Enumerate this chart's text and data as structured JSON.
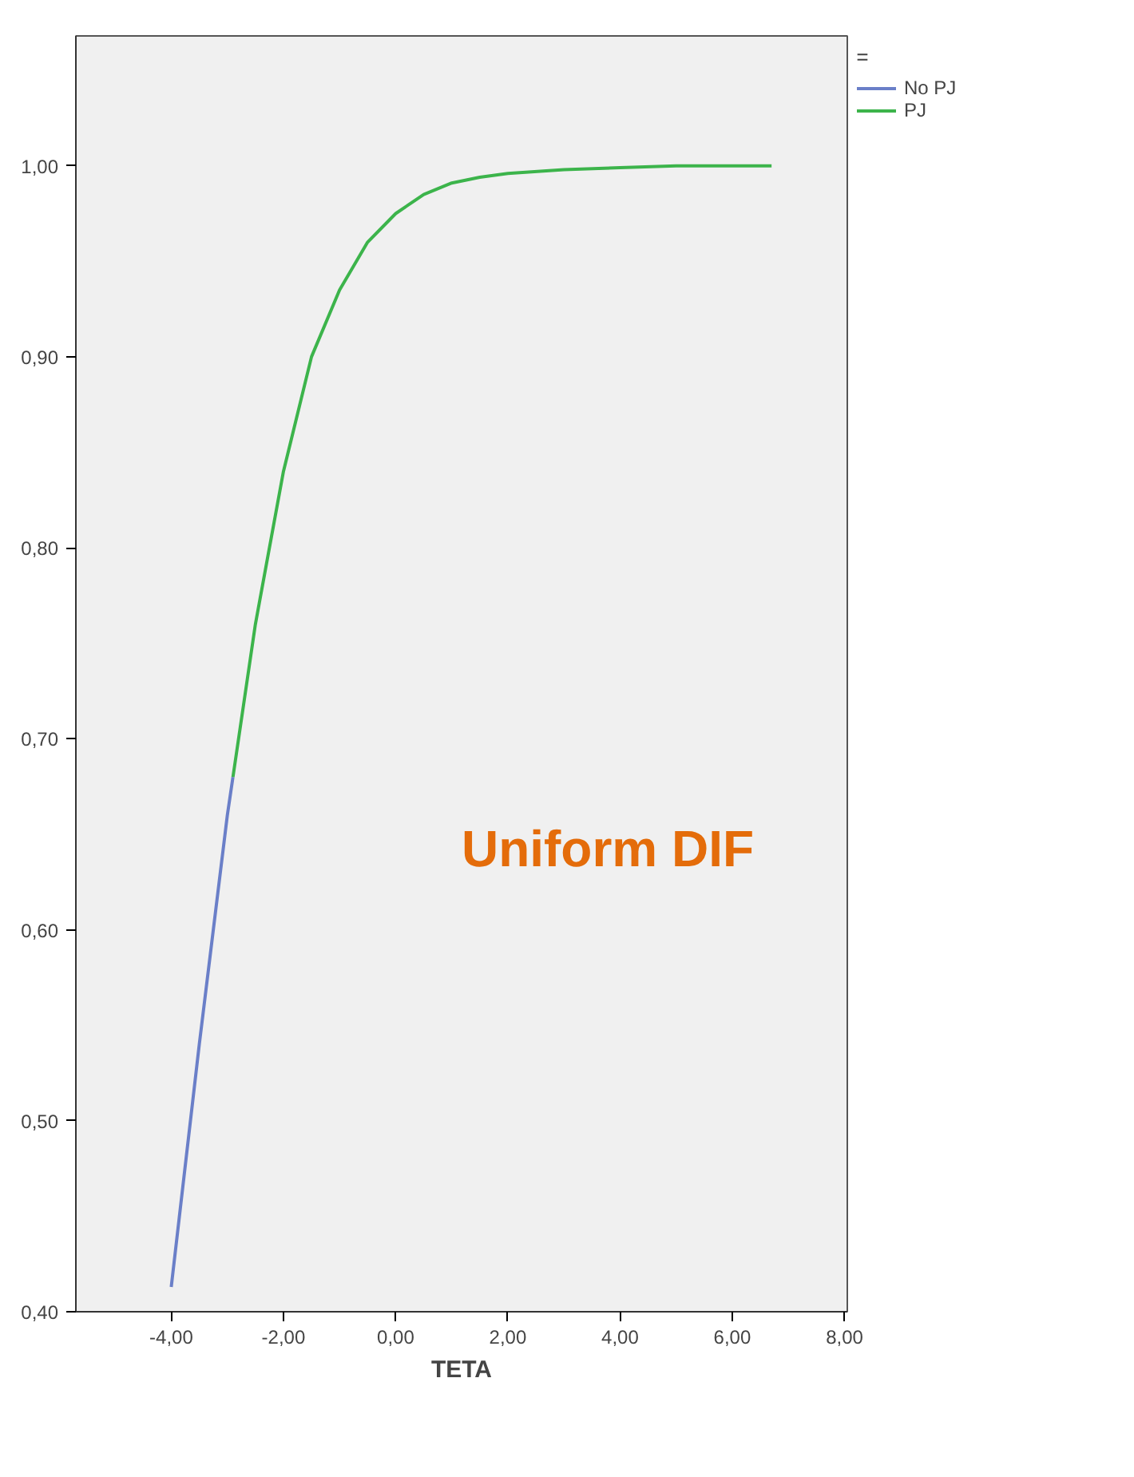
{
  "chart_data": {
    "type": "line",
    "xlabel": "TETA",
    "legend_title": "=",
    "legend": "top right",
    "grid": false,
    "marker": "none",
    "line_style": "solid",
    "annotations": [
      "Uniform DIF"
    ],
    "xlim": [
      -5.7,
      8.05
    ],
    "ylim": [
      0.4,
      1.068
    ],
    "xticks": [
      {
        "value": -4,
        "label": "-4,00"
      },
      {
        "value": -2,
        "label": "-2,00"
      },
      {
        "value": 0,
        "label": "0,00"
      },
      {
        "value": 2,
        "label": "2,00"
      },
      {
        "value": 4,
        "label": "4,00"
      },
      {
        "value": 6,
        "label": "6,00"
      },
      {
        "value": 8,
        "label": "8,00"
      }
    ],
    "yticks": [
      {
        "value": 0.4,
        "label": "0,40"
      },
      {
        "value": 0.5,
        "label": "0,50"
      },
      {
        "value": 0.6,
        "label": "0,60"
      },
      {
        "value": 0.7,
        "label": "0,70"
      },
      {
        "value": 0.8,
        "label": "0,80"
      },
      {
        "value": 0.9,
        "label": "0,90"
      },
      {
        "value": 1.0,
        "label": "1,00"
      }
    ],
    "series": [
      {
        "name": "No PJ",
        "color": "#6a7fc8",
        "x": [
          -4,
          -3.5,
          -3,
          -2.9
        ],
        "values": [
          0.413,
          0.54,
          0.66,
          0.68
        ]
      },
      {
        "name": "PJ",
        "color": "#3cb44b",
        "x": [
          -2.9,
          -2.5,
          -2,
          -1.5,
          -1,
          -0.5,
          0,
          0.5,
          1,
          1.5,
          2,
          3,
          4,
          5,
          6,
          6.7
        ],
        "values": [
          0.68,
          0.76,
          0.84,
          0.9,
          0.935,
          0.96,
          0.975,
          0.985,
          0.991,
          0.994,
          0.996,
          0.998,
          0.999,
          1.0,
          1.0,
          1.0
        ]
      }
    ]
  }
}
